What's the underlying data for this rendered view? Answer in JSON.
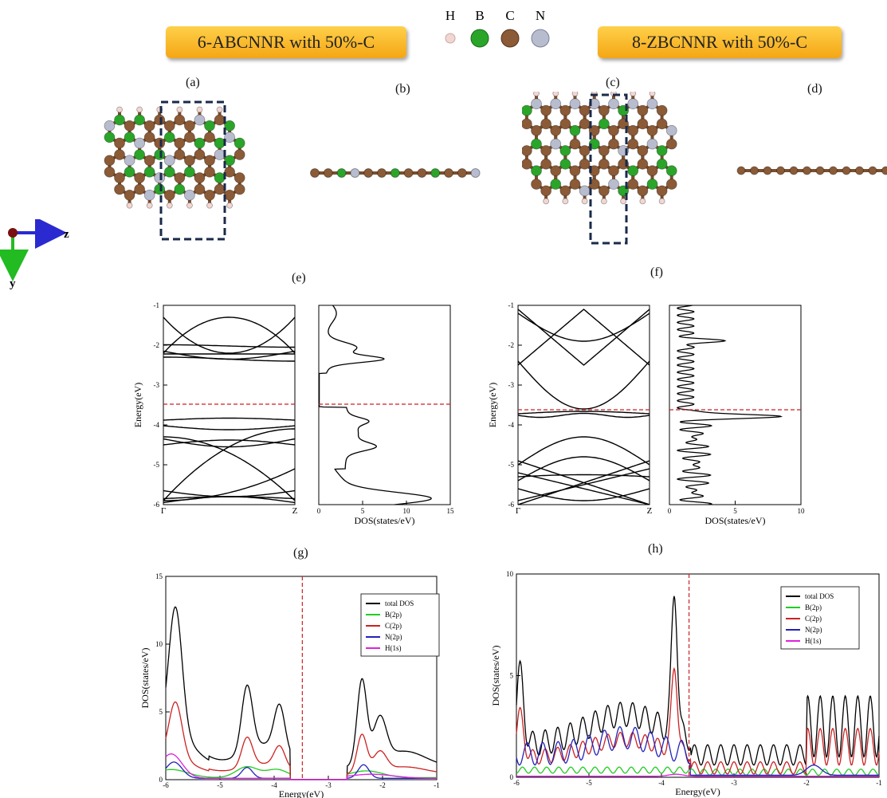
{
  "header": {
    "left_title": "6-ABCNNR with 50%-C",
    "right_title": "8-ZBCNNR with 50%-C"
  },
  "atom_legend": [
    {
      "label": "H",
      "color": "#f2d6d2"
    },
    {
      "label": "B",
      "color": "#2aa52a"
    },
    {
      "label": "C",
      "color": "#8b5a36"
    },
    {
      "label": "N",
      "color": "#b8bccf"
    }
  ],
  "panel_labels": {
    "a": "(a)",
    "b": "(b)",
    "c": "(c)",
    "d": "(d)",
    "e": "(e)",
    "f": "(f)",
    "g": "(g)",
    "h": "(h)"
  },
  "axes_indicator": {
    "z": "z",
    "y": "y"
  },
  "colors": {
    "boron": "#2aa52a",
    "carbon": "#8b5a36",
    "nitrogen": "#b8bccf",
    "hydrogen": "#f2d6d2",
    "fermi": "#cc2222"
  },
  "chart_data": [
    {
      "id": "e-bands",
      "type": "line",
      "ylabel": "Energy(eV)",
      "ylim": [
        -6,
        -1
      ],
      "yticks": [
        "-6",
        "-5",
        "-4",
        "-3",
        "-2",
        "-1"
      ],
      "xticks": [
        "Γ",
        "Z"
      ],
      "fermi_level": -3.48
    },
    {
      "id": "e-dos",
      "type": "line",
      "xlabel": "DOS(states/eV)",
      "xlim": [
        0,
        15
      ],
      "ylim": [
        -6,
        -1
      ],
      "xticks": [
        "0",
        "5",
        "10",
        "15"
      ],
      "fermi_level": -3.48
    },
    {
      "id": "f-bands",
      "type": "line",
      "ylabel": "Energy(eV)",
      "ylim": [
        -6,
        -1
      ],
      "yticks": [
        "-6",
        "-5",
        "-4",
        "-3",
        "-2",
        "-1"
      ],
      "xticks": [
        "Γ",
        "Z"
      ],
      "fermi_level": -3.62
    },
    {
      "id": "f-dos",
      "type": "line",
      "xlabel": "DOS(states/eV)",
      "xlim": [
        0,
        10
      ],
      "ylim": [
        -6,
        -1
      ],
      "xticks": [
        "0",
        "5",
        "10"
      ],
      "fermi_level": -3.62
    },
    {
      "id": "g-pdos",
      "type": "line",
      "xlabel": "Energy(eV)",
      "ylabel": "DOS(states/eV)",
      "xlim": [
        -6,
        -1
      ],
      "ylim": [
        0,
        15
      ],
      "xticks": [
        "-6",
        "-5",
        "-4",
        "-3",
        "-2",
        "-1"
      ],
      "yticks": [
        "0",
        "5",
        "10",
        "15"
      ],
      "fermi_level": -3.48,
      "legend_position": "top-right",
      "series": [
        {
          "name": "total DOS",
          "color": "#000000"
        },
        {
          "name": "B(2p)",
          "color": "#22cc22"
        },
        {
          "name": "C(2p)",
          "color": "#cc2222"
        },
        {
          "name": "N(2p)",
          "color": "#2222bb"
        },
        {
          "name": "H(1s)",
          "color": "#dd22dd"
        }
      ]
    },
    {
      "id": "h-pdos",
      "type": "line",
      "xlabel": "Energy(eV)",
      "ylabel": "DOS(states/eV)",
      "xlim": [
        -6,
        -1
      ],
      "ylim": [
        0,
        10
      ],
      "xticks": [
        "-6",
        "-5",
        "-4",
        "-3",
        "-2",
        "-1"
      ],
      "yticks": [
        "0",
        "5",
        "10"
      ],
      "fermi_level": -3.62,
      "legend_position": "top-right",
      "series": [
        {
          "name": "total DOS",
          "color": "#000000"
        },
        {
          "name": "B(2p)",
          "color": "#22cc22"
        },
        {
          "name": "C(2p)",
          "color": "#cc2222"
        },
        {
          "name": "N(2p)",
          "color": "#2222bb"
        },
        {
          "name": "H(1s)",
          "color": "#dd22dd"
        }
      ]
    }
  ]
}
